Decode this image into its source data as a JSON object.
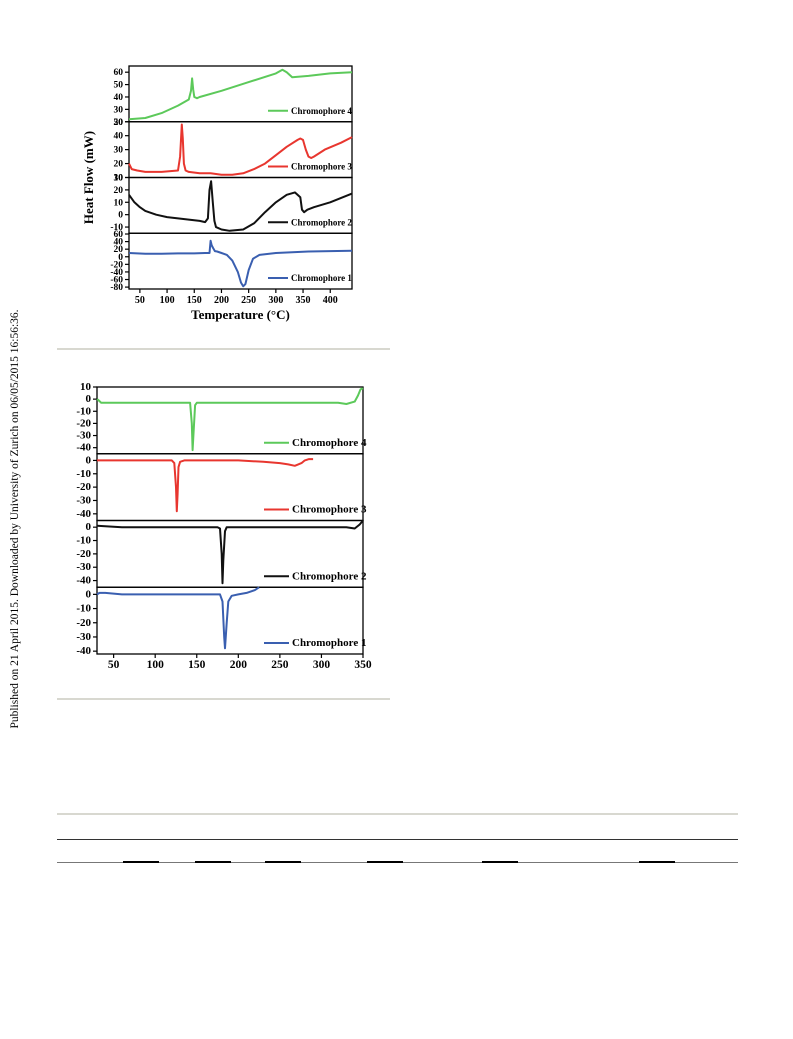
{
  "side_note": "Published on 21 April 2015. Downloaded by University of Zurich on 06/05/2015 16:56:36.",
  "colors": {
    "chromophore_4": "#5cc95a",
    "chromophore_3": "#e8362f",
    "chromophore_2": "#111111",
    "chromophore_1": "#3a5fb0"
  },
  "chart_data": [
    {
      "type": "line",
      "title": "",
      "ylabel": "Heat Flow (mW)",
      "xlabel": "Temperature (°C)",
      "xlim": [
        30,
        440
      ],
      "xticks": [
        50,
        100,
        150,
        200,
        250,
        300,
        350,
        400
      ],
      "xtick_labels": [
        "50",
        "100",
        "150",
        "200",
        "250",
        "300",
        "350",
        "400"
      ],
      "panels": [
        {
          "name": "Chromophore 4",
          "color": "#5cc95a",
          "ylim": [
            20,
            65
          ],
          "yticks": [
            20,
            30,
            40,
            50,
            60
          ],
          "x": [
            30,
            60,
            90,
            120,
            140,
            144,
            146,
            148,
            150,
            155,
            160,
            200,
            250,
            300,
            312,
            320,
            330,
            360,
            400,
            440
          ],
          "y": [
            22,
            23,
            27,
            33,
            38,
            45,
            55,
            46,
            40,
            39,
            40,
            45,
            52,
            59,
            62,
            60,
            56,
            57,
            59,
            60
          ]
        },
        {
          "name": "Chromophore 3",
          "color": "#e8362f",
          "ylim": [
            10,
            50
          ],
          "yticks": [
            10,
            20,
            30,
            40,
            50
          ],
          "x": [
            30,
            35,
            45,
            60,
            90,
            120,
            124,
            127,
            129,
            131,
            134,
            140,
            160,
            180,
            200,
            220,
            240,
            260,
            280,
            300,
            320,
            340,
            345,
            350,
            355,
            360,
            365,
            370,
            390,
            420,
            440
          ],
          "y": [
            20,
            16,
            15,
            14,
            14,
            15,
            25,
            48,
            38,
            20,
            15,
            14,
            13,
            13,
            12,
            12,
            13,
            16,
            20,
            26,
            32,
            37,
            38,
            37,
            30,
            25,
            24,
            25,
            30,
            35,
            39
          ],
          "xmax": 440
        },
        {
          "name": "Chromophore 2",
          "color": "#111111",
          "ylim": [
            -15,
            30
          ],
          "yticks": [
            -10,
            0,
            10,
            20,
            30
          ],
          "x": [
            30,
            40,
            50,
            60,
            80,
            100,
            120,
            140,
            160,
            170,
            175,
            178,
            181,
            184,
            187,
            190,
            200,
            215,
            240,
            260,
            280,
            300,
            320,
            335,
            345,
            348,
            352,
            358,
            370,
            400,
            440
          ],
          "y": [
            16,
            10,
            6,
            3,
            0,
            -2,
            -3,
            -4,
            -5,
            -6,
            -3,
            20,
            27,
            10,
            -5,
            -10,
            -12,
            -13,
            -12,
            -7,
            2,
            10,
            16,
            18,
            14,
            4,
            2,
            4,
            6,
            10,
            17
          ],
          "xmax": 440
        },
        {
          "name": "Chromophore 1",
          "color": "#3a5fb0",
          "ylim": [
            -85,
            62
          ],
          "yticks": [
            -80,
            -60,
            -40,
            -20,
            0,
            20,
            40,
            60
          ],
          "ytick_labels": [
            "-80",
            "-60",
            "-40",
            "-20",
            "0",
            "20",
            "40",
            "60"
          ],
          "x": [
            30,
            60,
            90,
            120,
            150,
            170,
            178,
            180,
            182,
            185,
            188,
            192,
            200,
            210,
            220,
            230,
            236,
            240,
            244,
            250,
            258,
            270,
            300,
            330,
            360,
            400,
            440
          ],
          "y": [
            10,
            8,
            8,
            9,
            9,
            10,
            10,
            42,
            30,
            22,
            15,
            14,
            10,
            5,
            -10,
            -40,
            -68,
            -78,
            -72,
            -35,
            -5,
            5,
            10,
            12,
            14,
            15,
            16
          ]
        }
      ]
    },
    {
      "type": "line",
      "title": "",
      "xlim": [
        30,
        350
      ],
      "xticks": [
        50,
        100,
        150,
        200,
        250,
        300,
        350
      ],
      "xtick_labels": [
        "50",
        "100",
        "150",
        "200",
        "250",
        "300",
        "350"
      ],
      "panels": [
        {
          "name": "Chromophore 4",
          "color": "#5cc95a",
          "ylim": [
            -45,
            10
          ],
          "yticks": [
            -40,
            -30,
            -20,
            -10,
            0,
            10
          ],
          "x": [
            30,
            32,
            35,
            60,
            100,
            130,
            142,
            144,
            145,
            146,
            148,
            150,
            155,
            200,
            300,
            320,
            330,
            340,
            344,
            347,
            350
          ],
          "y": [
            0,
            -1,
            -3,
            -3,
            -3,
            -3,
            -3,
            -20,
            -42,
            -30,
            -5,
            -3,
            -3,
            -3,
            -3,
            -3,
            -4,
            -2,
            3,
            8,
            9
          ]
        },
        {
          "name": "Chromophore 3",
          "color": "#e8362f",
          "ylim": [
            -45,
            5
          ],
          "yticks": [
            -40,
            -30,
            -20,
            -10,
            0
          ],
          "x": [
            30,
            60,
            100,
            120,
            123,
            125,
            126,
            127,
            128,
            130,
            135,
            160,
            200,
            230,
            250,
            260,
            268,
            272,
            276,
            280,
            285,
            290
          ],
          "y": [
            0,
            0,
            0,
            0,
            -2,
            -20,
            -38,
            -25,
            -5,
            -1,
            0,
            0,
            0,
            -1,
            -2,
            -3,
            -4,
            -3,
            -2,
            0,
            1,
            1
          ],
          "xmax": 290
        },
        {
          "name": "Chromophore 2",
          "color": "#111111",
          "ylim": [
            -45,
            5
          ],
          "yticks": [
            -40,
            -30,
            -20,
            -10,
            0
          ],
          "x": [
            30,
            60,
            100,
            150,
            175,
            178,
            180,
            181,
            182,
            184,
            186,
            190,
            220,
            260,
            300,
            320,
            330,
            340,
            346,
            350
          ],
          "y": [
            1,
            0,
            0,
            0,
            0,
            -1,
            -20,
            -42,
            -25,
            -3,
            0,
            0,
            0,
            0,
            0,
            0,
            0,
            -1,
            2,
            5
          ]
        },
        {
          "name": "Chromophore 1",
          "color": "#3a5fb0",
          "ylim": [
            -42,
            5
          ],
          "yticks": [
            -40,
            -30,
            -20,
            -10,
            0
          ],
          "x": [
            30,
            33,
            40,
            60,
            100,
            150,
            178,
            181,
            183,
            184,
            186,
            188,
            192,
            200,
            210,
            220,
            225
          ],
          "y": [
            0,
            1,
            1,
            0,
            0,
            0,
            0,
            -5,
            -30,
            -38,
            -20,
            -5,
            -1,
            0,
            1,
            3,
            5
          ],
          "xmax": 225
        }
      ]
    }
  ]
}
